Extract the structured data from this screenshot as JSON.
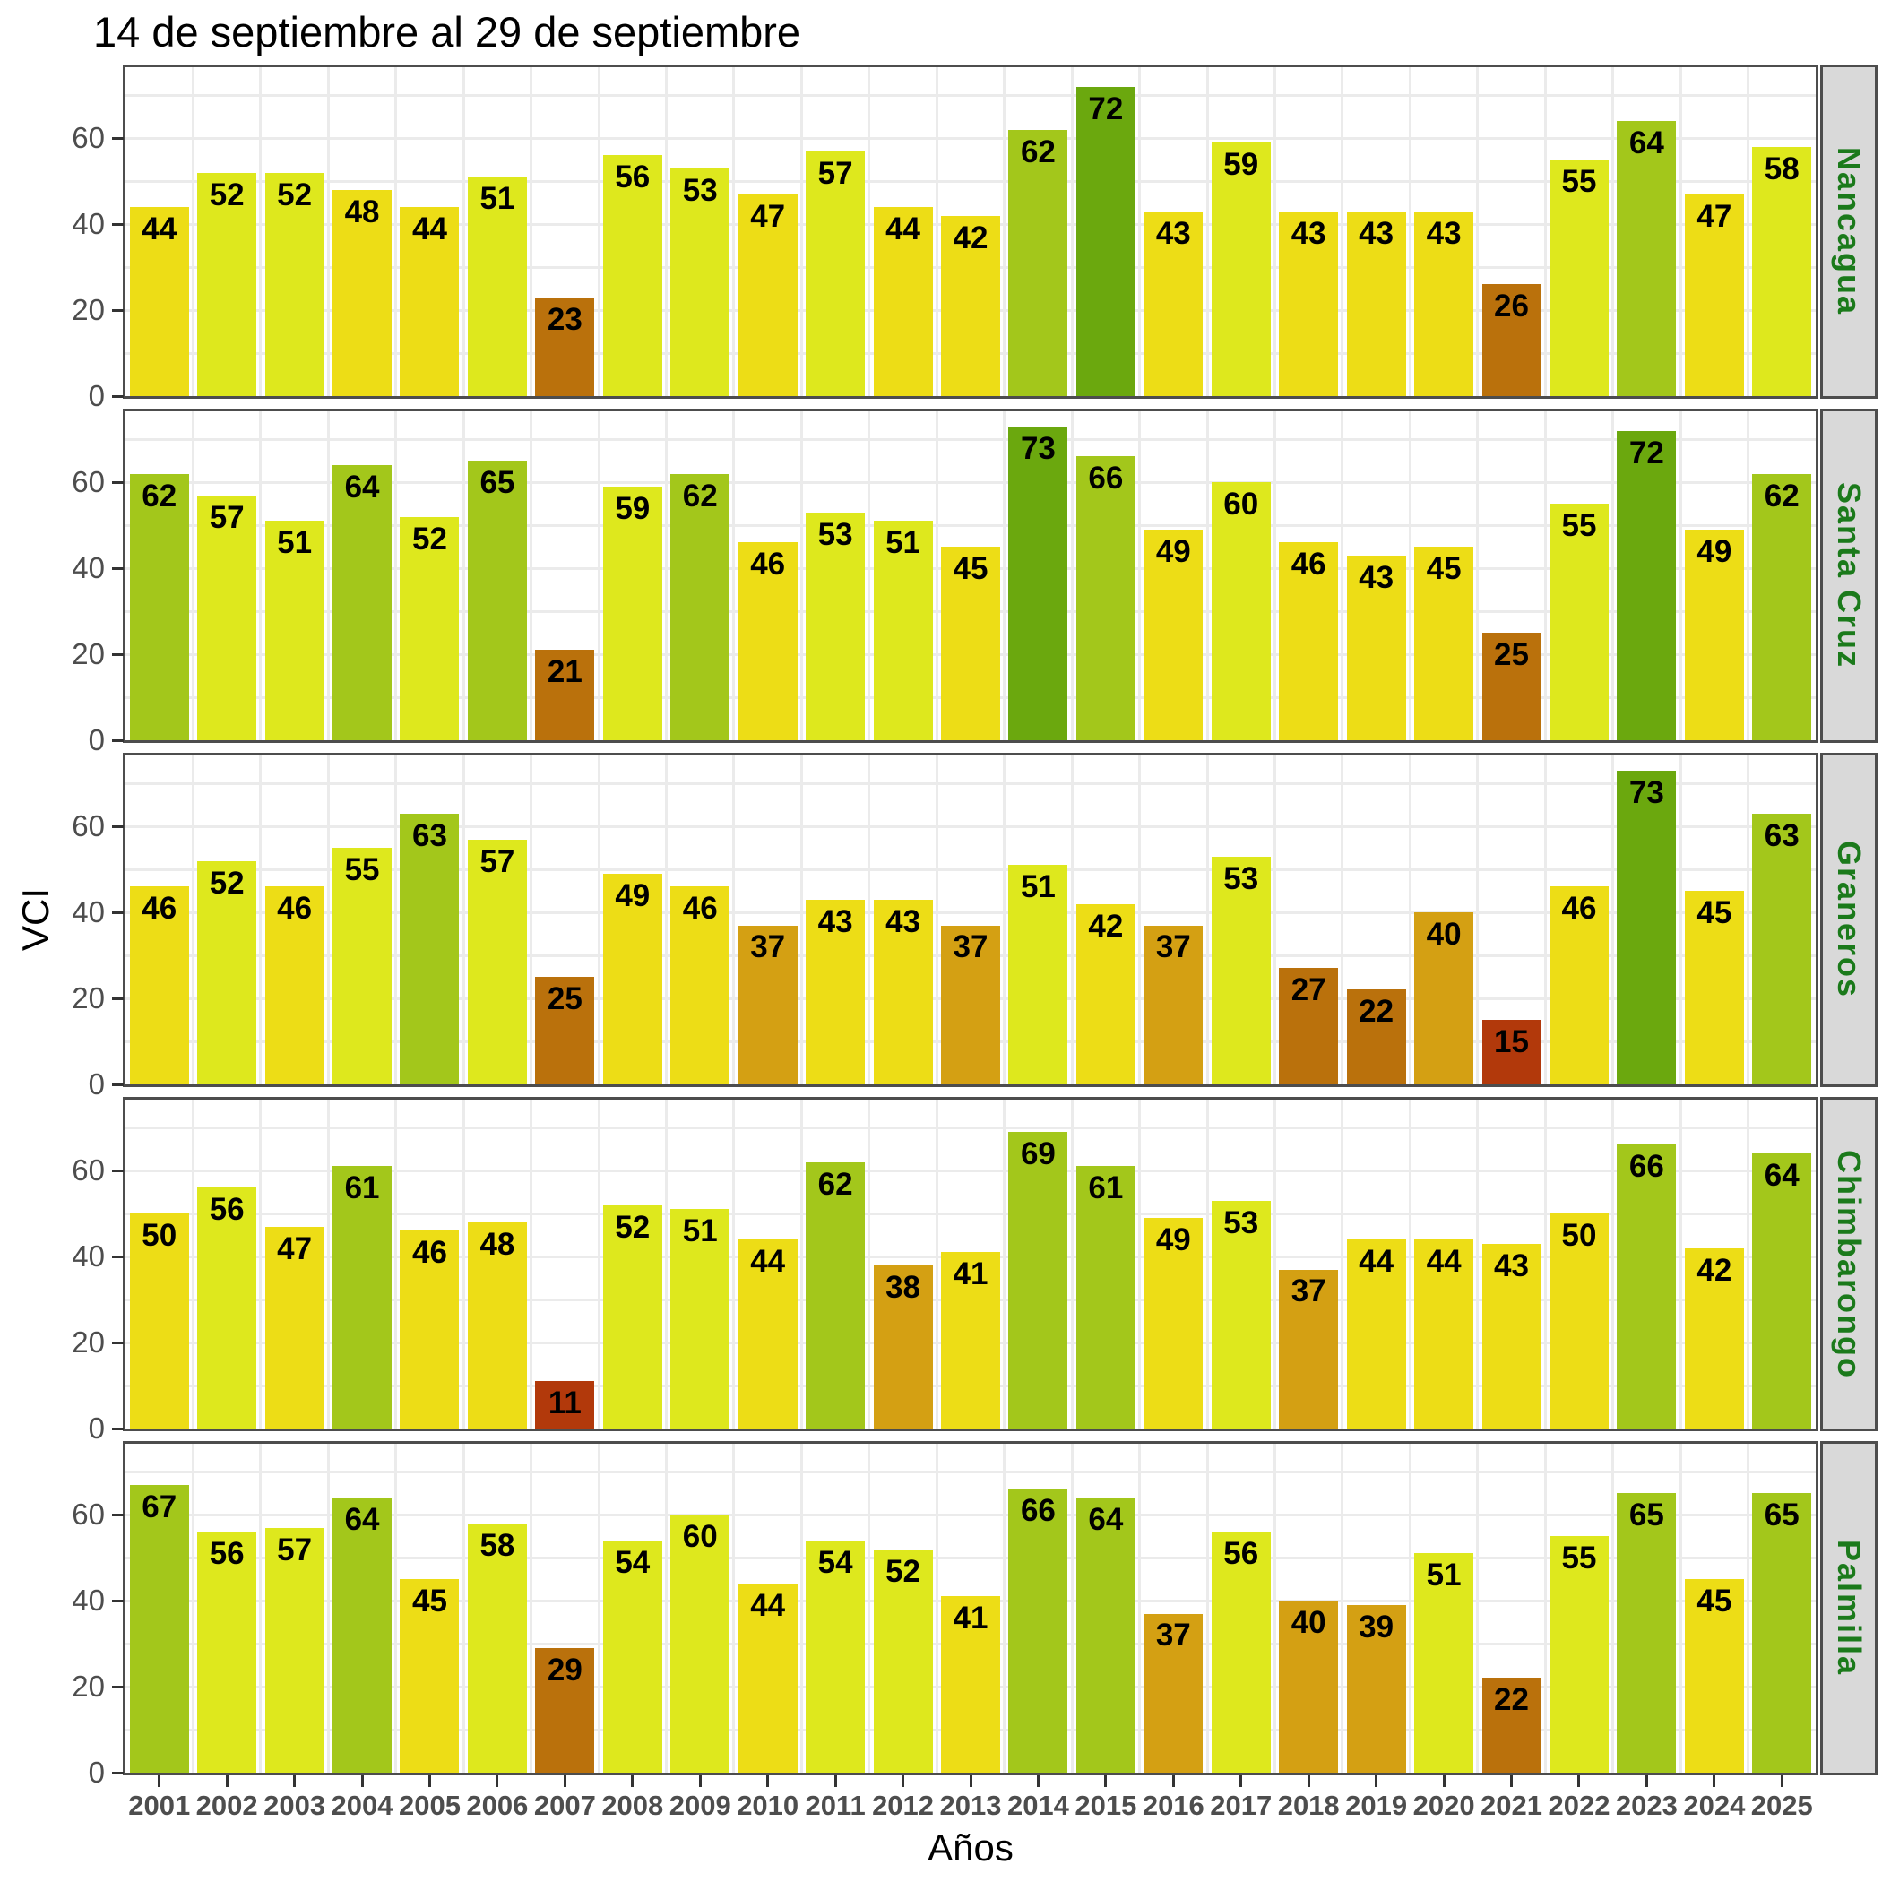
{
  "title": "14 de septiembre al 29 de septiembre",
  "x_axis": {
    "label": "Años",
    "years": [
      "2001",
      "2002",
      "2003",
      "2004",
      "2005",
      "2006",
      "2007",
      "2008",
      "2009",
      "2010",
      "2011",
      "2012",
      "2013",
      "2014",
      "2015",
      "2016",
      "2017",
      "2018",
      "2019",
      "2020",
      "2021",
      "2022",
      "2023",
      "2024",
      "2025"
    ]
  },
  "y_axis": {
    "label": "VCI",
    "tick_values": [
      0,
      20,
      40,
      60
    ],
    "gridline_values": [
      10,
      20,
      30,
      40,
      50,
      60,
      70
    ],
    "axis_max": 76.5
  },
  "facets": [
    "Nancagua",
    "Santa Cruz",
    "Graneros",
    "Chimbarongo",
    "Palmilla"
  ],
  "chart_data": {
    "type": "bar",
    "x": [
      2001,
      2002,
      2003,
      2004,
      2005,
      2006,
      2007,
      2008,
      2009,
      2010,
      2011,
      2012,
      2013,
      2014,
      2015,
      2016,
      2017,
      2018,
      2019,
      2020,
      2021,
      2022,
      2023,
      2024,
      2025
    ],
    "series": [
      {
        "name": "Nancagua",
        "values": [
          44,
          52,
          52,
          48,
          44,
          51,
          23,
          56,
          53,
          47,
          57,
          44,
          42,
          62,
          72,
          43,
          59,
          43,
          43,
          43,
          26,
          55,
          64,
          47,
          58
        ]
      },
      {
        "name": "Santa Cruz",
        "values": [
          62,
          57,
          51,
          64,
          52,
          65,
          21,
          59,
          62,
          46,
          53,
          51,
          45,
          73,
          66,
          49,
          60,
          46,
          43,
          45,
          25,
          55,
          72,
          49,
          62
        ]
      },
      {
        "name": "Graneros",
        "values": [
          46,
          52,
          46,
          55,
          63,
          57,
          25,
          49,
          46,
          37,
          43,
          43,
          37,
          51,
          42,
          37,
          53,
          27,
          22,
          40,
          15,
          46,
          73,
          45,
          63
        ]
      },
      {
        "name": "Chimbarongo",
        "values": [
          50,
          56,
          47,
          61,
          46,
          48,
          11,
          52,
          51,
          44,
          62,
          38,
          41,
          69,
          61,
          49,
          53,
          37,
          44,
          44,
          43,
          50,
          66,
          42,
          64
        ]
      },
      {
        "name": "Palmilla",
        "values": [
          67,
          56,
          57,
          64,
          45,
          58,
          29,
          54,
          60,
          44,
          54,
          52,
          41,
          66,
          64,
          37,
          56,
          40,
          39,
          51,
          22,
          55,
          65,
          45,
          65
        ]
      }
    ],
    "title": "14 de septiembre al 29 de septiembre",
    "xlabel": "Años",
    "ylabel": "VCI",
    "ylim": [
      0,
      76.5
    ],
    "grid": true,
    "legend": false,
    "facet_layout": "rows, facet strips on right side",
    "value_labels": "bold black number inside top of each bar",
    "color_bins": [
      {
        "max": 20,
        "color": "#B2390B",
        "meaning": "0-20"
      },
      {
        "max": 30,
        "color": "#BA710C",
        "meaning": "21-30"
      },
      {
        "max": 40,
        "color": "#D4A013",
        "meaning": "31-40"
      },
      {
        "max": 50,
        "color": "#EDDD16",
        "meaning": "41-50"
      },
      {
        "max": 60,
        "color": "#DEE81D",
        "meaning": "51-60"
      },
      {
        "max": 70,
        "color": "#A3C71B",
        "meaning": "61-70"
      },
      {
        "max": 100,
        "color": "#6BA80E",
        "meaning": "71-100"
      }
    ]
  },
  "colors": {
    "background": "#FFFFFF",
    "panel_background": "#FFFFFF",
    "gridline": "#EBEBEB",
    "panel_border": "#4D4D4D",
    "strip_background": "#D9D9D9",
    "strip_text": "#1B7A1B",
    "axis_text": "#4D4D4D",
    "tick_mark": "#333333",
    "bar_label": "#000000"
  }
}
